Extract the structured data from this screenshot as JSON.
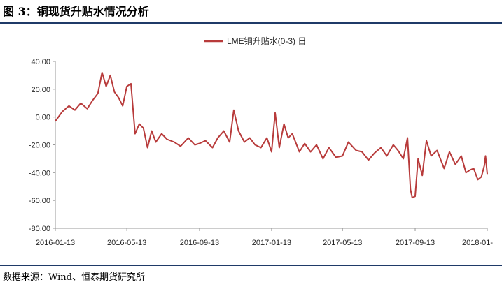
{
  "header": {
    "figure_title": "图 3：铜现货升贴水情况分析"
  },
  "footer": {
    "source": "数据来源：Wind、恒泰期货研究所"
  },
  "colors": {
    "series": "#b83b3b",
    "rule": "#1f3a68",
    "axis": "#999999"
  },
  "chart_data": {
    "type": "line",
    "grid": false,
    "legend_position": "top-center",
    "ylim": [
      -80,
      40
    ],
    "y_ticks": [
      "40.00",
      "20.00",
      "0.00",
      "-20.00",
      "-40.00",
      "-60.00",
      "-80.00"
    ],
    "x_ticks": [
      "2016-01-13",
      "2016-05-13",
      "2016-09-13",
      "2017-01-13",
      "2017-05-13",
      "2017-09-13",
      "2018-01-"
    ],
    "series": [
      {
        "name": "LME铜升贴水(0-3) 日",
        "x": [
          "2016-01-13",
          "2016-01-25",
          "2016-02-05",
          "2016-02-15",
          "2016-02-25",
          "2016-03-07",
          "2016-03-16",
          "2016-03-25",
          "2016-04-01",
          "2016-04-08",
          "2016-04-15",
          "2016-04-22",
          "2016-04-29",
          "2016-05-06",
          "2016-05-13",
          "2016-05-20",
          "2016-05-27",
          "2016-06-03",
          "2016-06-10",
          "2016-06-17",
          "2016-06-24",
          "2016-07-01",
          "2016-07-11",
          "2016-07-20",
          "2016-08-01",
          "2016-08-12",
          "2016-08-25",
          "2016-09-05",
          "2016-09-13",
          "2016-09-23",
          "2016-10-05",
          "2016-10-14",
          "2016-10-24",
          "2016-11-03",
          "2016-11-10",
          "2016-11-18",
          "2016-11-28",
          "2016-12-07",
          "2016-12-16",
          "2016-12-26",
          "2017-01-05",
          "2017-01-13",
          "2017-01-19",
          "2017-01-26",
          "2017-02-03",
          "2017-02-10",
          "2017-02-17",
          "2017-03-01",
          "2017-03-10",
          "2017-03-20",
          "2017-03-30",
          "2017-04-10",
          "2017-04-20",
          "2017-05-02",
          "2017-05-13",
          "2017-05-23",
          "2017-06-05",
          "2017-06-15",
          "2017-06-26",
          "2017-07-06",
          "2017-07-17",
          "2017-07-27",
          "2017-08-07",
          "2017-08-15",
          "2017-08-24",
          "2017-08-31",
          "2017-09-05",
          "2017-09-08",
          "2017-09-13",
          "2017-09-18",
          "2017-09-25",
          "2017-10-02",
          "2017-10-10",
          "2017-10-20",
          "2017-11-01",
          "2017-11-10",
          "2017-11-20",
          "2017-11-30",
          "2017-12-08",
          "2017-12-15",
          "2017-12-21",
          "2017-12-28",
          "2018-01-03",
          "2018-01-08",
          "2018-01-10",
          "2018-01-13"
        ],
        "values": [
          -3,
          4,
          8,
          5,
          10,
          6,
          12,
          17,
          32,
          22,
          30,
          18,
          14,
          8,
          22,
          24,
          -12,
          -5,
          -8,
          -22,
          -10,
          -18,
          -12,
          -16,
          -18,
          -21,
          -15,
          -20,
          -19,
          -17,
          -22,
          -15,
          -10,
          -18,
          5,
          -10,
          -18,
          -15,
          -20,
          -22,
          -15,
          -25,
          3,
          -22,
          -5,
          -15,
          -12,
          -25,
          -19,
          -25,
          -20,
          -30,
          -22,
          -29,
          -28,
          -18,
          -24,
          -25,
          -31,
          -26,
          -22,
          -28,
          -20,
          -24,
          -30,
          -15,
          -52,
          -58,
          -57,
          -30,
          -42,
          -17,
          -28,
          -24,
          -37,
          -25,
          -34,
          -28,
          -40,
          -38,
          -37,
          -45,
          -43,
          -35,
          -28,
          -41
        ]
      }
    ]
  }
}
